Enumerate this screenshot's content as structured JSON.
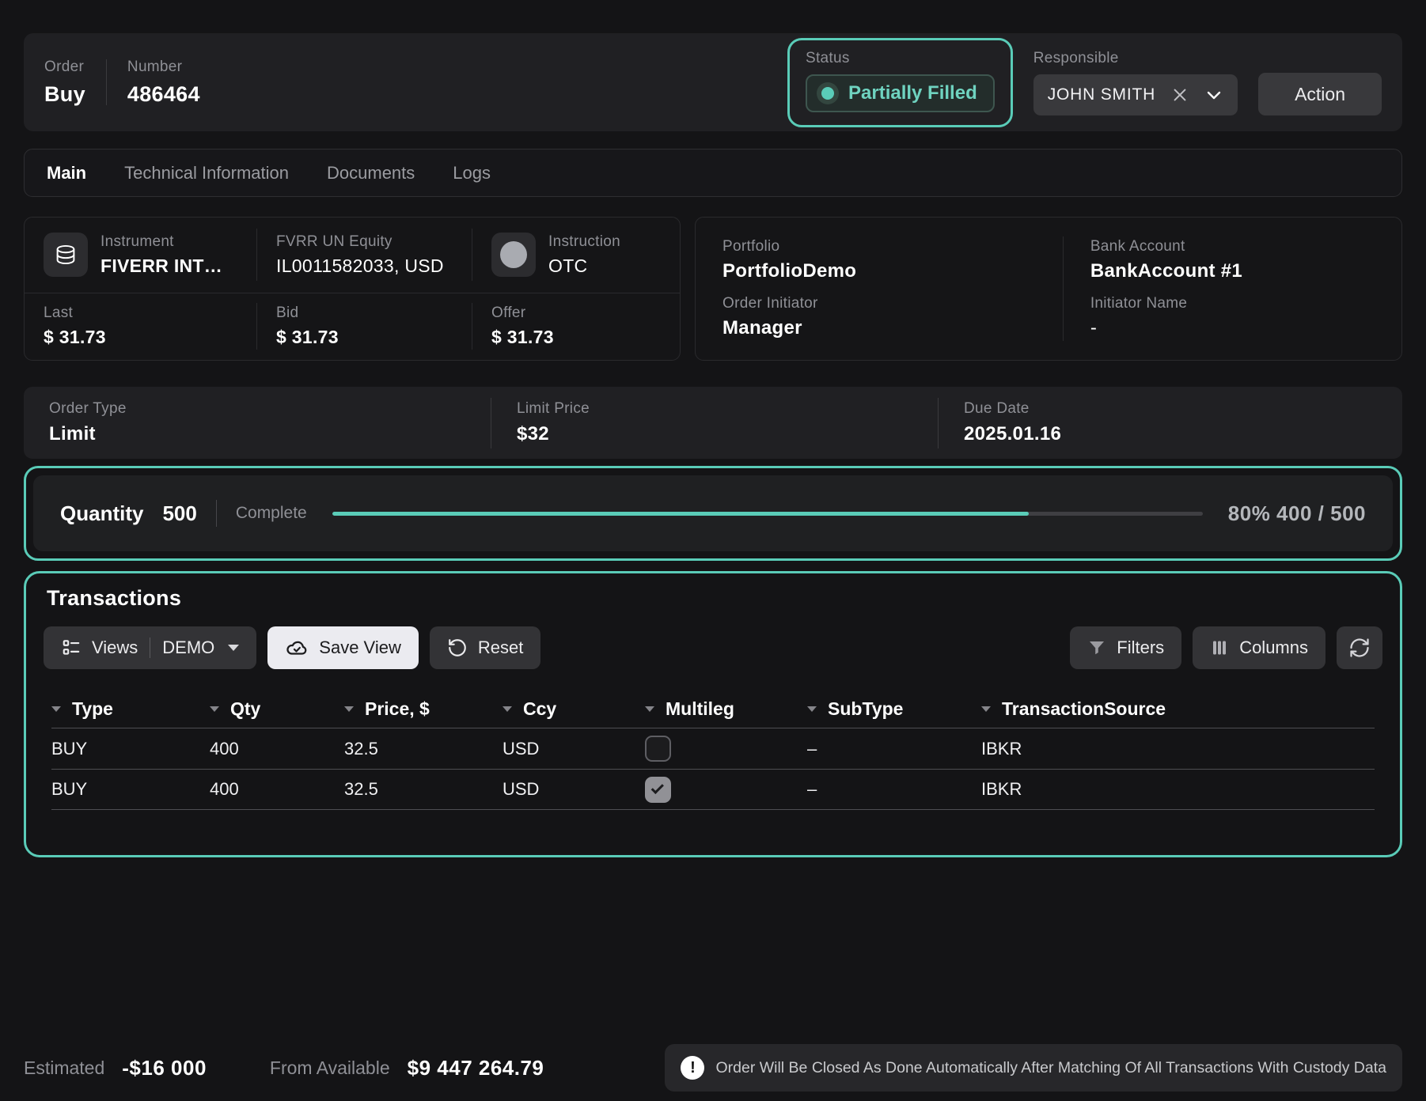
{
  "accent_color": "#5accb8",
  "header": {
    "order_label": "Order",
    "order_value": "Buy",
    "number_label": "Number",
    "number_value": "486464",
    "status_label": "Status",
    "status_value": "Partially Filled",
    "responsible_label": "Responsible",
    "responsible_value": "JOHN SMITH",
    "action_label": "Action"
  },
  "tabs": [
    {
      "label": "Main"
    },
    {
      "label": "Technical Information"
    },
    {
      "label": "Documents"
    },
    {
      "label": "Logs"
    }
  ],
  "instrument_card": {
    "instrument_label": "Instrument",
    "instrument_value": "FIVERR INT…",
    "equity_label": "FVRR UN Equity",
    "equity_value": "IL0011582033, USD",
    "instruction_label": "Instruction",
    "instruction_value": "OTC",
    "last_label": "Last",
    "last_value": "$ 31.73",
    "bid_label": "Bid",
    "bid_value": "$ 31.73",
    "offer_label": "Offer",
    "offer_value": "$ 31.73"
  },
  "portfolio_card": {
    "portfolio_label": "Portfolio",
    "portfolio_value": "PortfolioDemo",
    "bank_label": "Bank Account",
    "bank_value": "BankAccount #1",
    "initiator_label": "Order Initiator",
    "initiator_value": "Manager",
    "initiator_name_label": "Initiator Name",
    "initiator_name_value": "-"
  },
  "order_details": {
    "type_label": "Order Type",
    "type_value": "Limit",
    "limit_label": "Limit Price",
    "limit_value": "$32",
    "due_label": "Due Date",
    "due_value": "2025.01.16"
  },
  "quantity": {
    "label": "Quantity",
    "value": "500",
    "progress_label": "Complete",
    "percent": 80,
    "progress_text": "80% 400 / 500"
  },
  "transactions": {
    "title": "Transactions",
    "toolbar": {
      "views_label": "Views",
      "views_value": "DEMO",
      "save_view_label": "Save View",
      "reset_label": "Reset",
      "filters_label": "Filters",
      "columns_label": "Columns"
    },
    "table": {
      "columns": [
        "Type",
        "Qty",
        "Price, $",
        "Ccy",
        "Multileg",
        "SubType",
        "TransactionSource"
      ],
      "rows": [
        {
          "type": "BUY",
          "qty": "400",
          "price": "32.5",
          "ccy": "USD",
          "multileg": false,
          "subtype": "–",
          "source": "IBKR"
        },
        {
          "type": "BUY",
          "qty": "400",
          "price": "32.5",
          "ccy": "USD",
          "multileg": true,
          "subtype": "–",
          "source": "IBKR"
        }
      ]
    }
  },
  "footer": {
    "estimated_label": "Estimated",
    "estimated_value": "-$16 000",
    "available_label": "From Available",
    "available_value": "$9 447 264.79",
    "notice": "Order Will Be Closed As Done Automatically After Matching Of All Transactions With Custody Data"
  }
}
